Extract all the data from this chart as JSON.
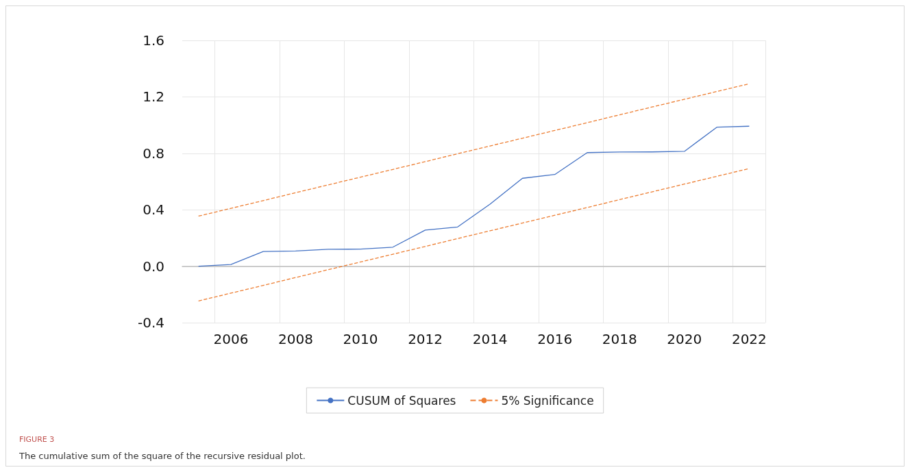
{
  "chart_data": {
    "type": "line",
    "title": "FIGURE 3",
    "subtitle": "The cumulative sum of the square of the recursive residual plot.",
    "categories": [
      null,
      "2006",
      null,
      "2008",
      null,
      "2010",
      null,
      "2012",
      null,
      "2014",
      null,
      "2016",
      null,
      "2018",
      null,
      "2020",
      null,
      "2022"
    ],
    "series": [
      {
        "name": "CUSUM of Squares",
        "color": "#4472c4",
        "line_style": "solid",
        "values": [
          0.0,
          0.012,
          0.104,
          0.108,
          0.12,
          0.121,
          0.135,
          0.256,
          0.278,
          0.44,
          0.623,
          0.65,
          0.805,
          0.809,
          0.81,
          0.814,
          0.985,
          0.992
        ]
      },
      {
        "name": "5% Significance",
        "color": "#ed7d31",
        "line_style": "dashed",
        "values": [
          0.355,
          0.41,
          0.465,
          0.521,
          0.576,
          0.631,
          0.686,
          0.741,
          0.797,
          0.852,
          0.907,
          0.962,
          1.017,
          1.073,
          1.128,
          1.183,
          1.238,
          1.293
        ]
      },
      {
        "color": "#ed7d31",
        "line_style": "dashed",
        "values": [
          -0.246,
          -0.191,
          -0.136,
          -0.08,
          -0.025,
          0.03,
          0.085,
          0.14,
          0.196,
          0.251,
          0.306,
          0.361,
          0.416,
          0.472,
          0.527,
          0.582,
          0.637,
          0.692
        ]
      }
    ],
    "ylim": [
      -0.4,
      1.6
    ],
    "yticks": [
      -0.4,
      {
        "value": 0,
        "label": "0.0"
      },
      0.4,
      0.8,
      1.2,
      1.6
    ],
    "grid": true,
    "legend": "bottom",
    "marker": "none"
  }
}
